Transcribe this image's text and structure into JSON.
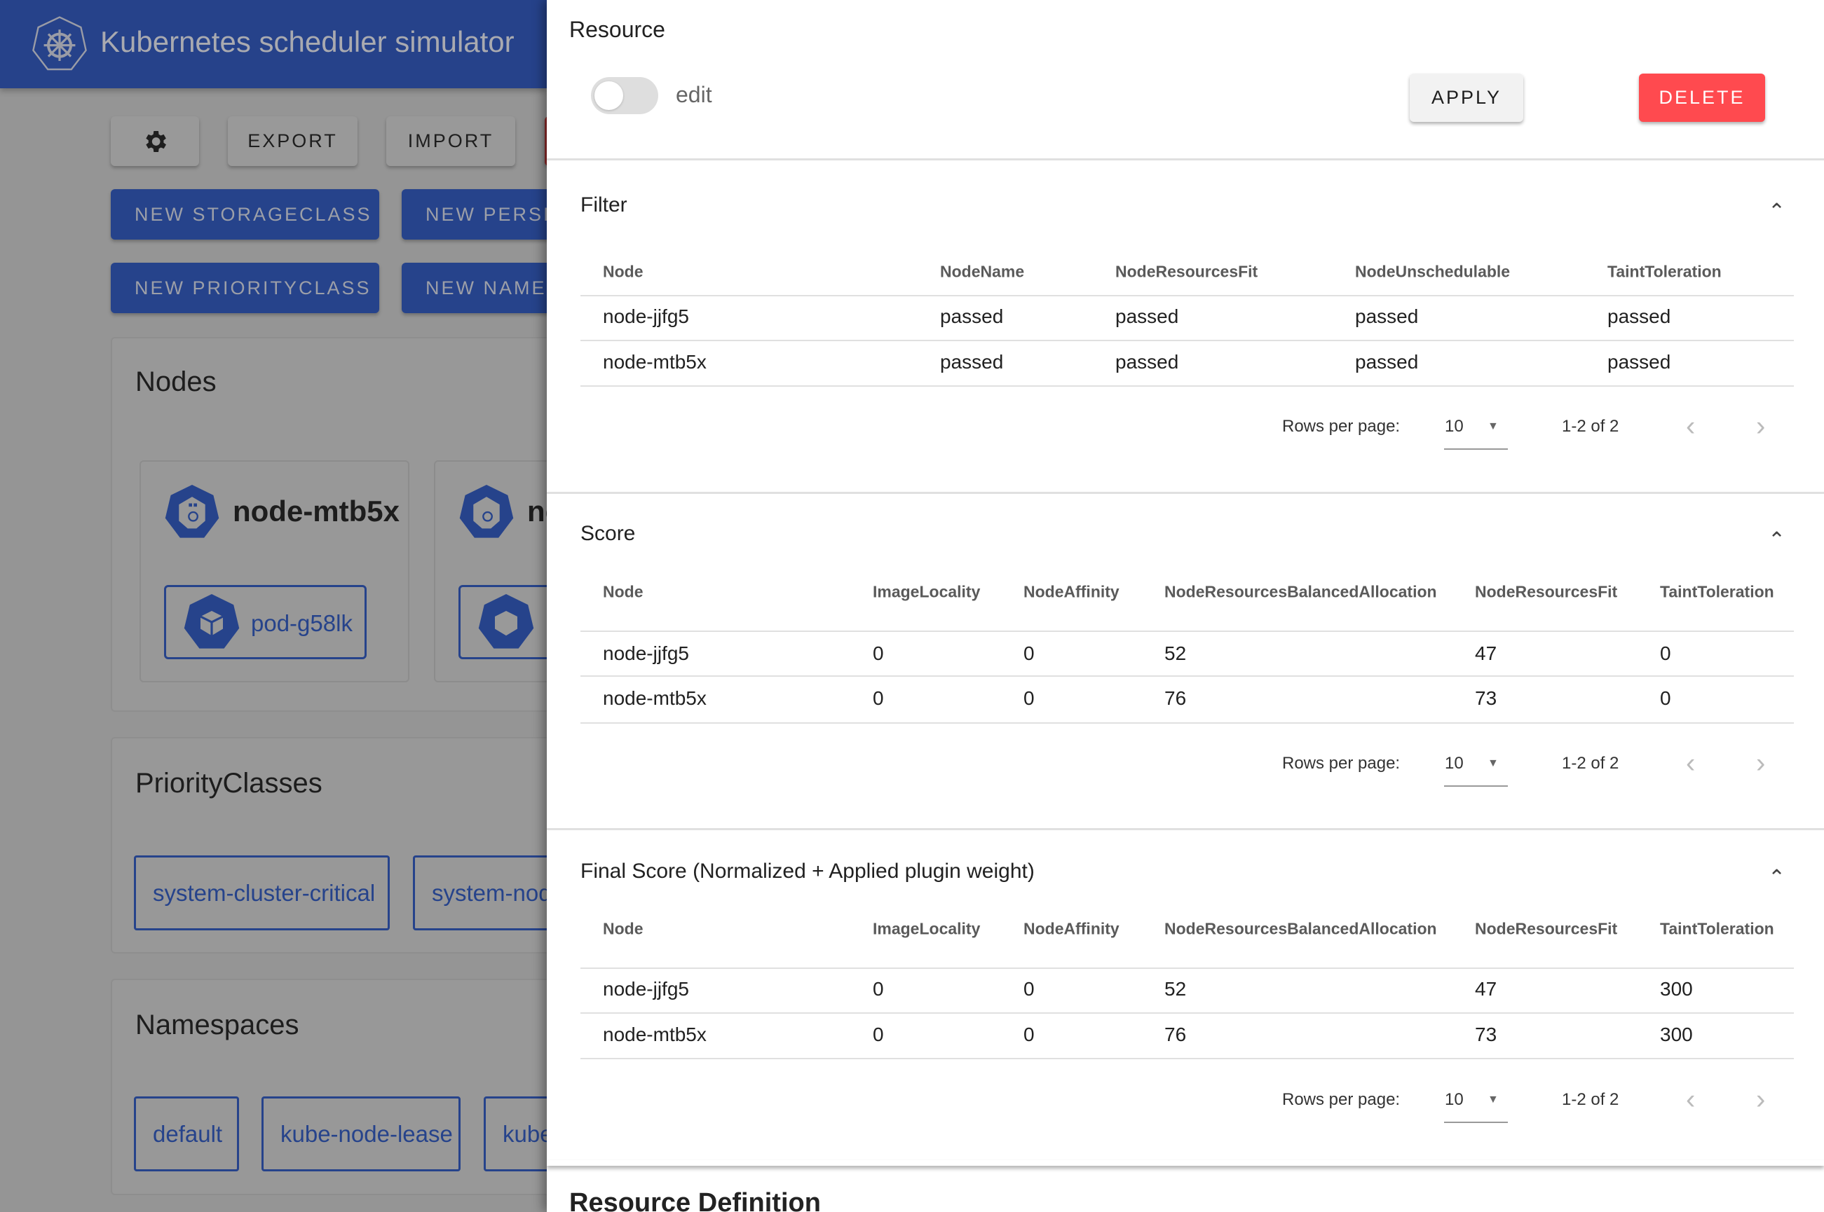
{
  "app": {
    "title": "Kubernetes scheduler simulator",
    "logo_icon": "kubernetes-helm-icon"
  },
  "toolbar": {
    "settings_icon": "gear-icon",
    "export_label": "EXPORT",
    "import_label": "IMPORT",
    "new_buttons": [
      "NEW STORAGECLASS",
      "NEW PERSIS",
      "NEW PRIORITYCLASS",
      "NEW NAMES"
    ]
  },
  "nodes_section": {
    "title": "Nodes",
    "nodes": [
      {
        "name": "node-mtb5x",
        "pods": [
          "pod-g58lk"
        ]
      },
      {
        "name": "nc",
        "pods": [
          ""
        ]
      }
    ]
  },
  "priorityclasses_section": {
    "title": "PriorityClasses",
    "items": [
      "system-cluster-critical",
      "system-nod"
    ]
  },
  "namespaces_section": {
    "title": "Namespaces",
    "items": [
      "default",
      "kube-node-lease",
      "kube"
    ]
  },
  "panel": {
    "title": "Resource",
    "edit_label": "edit",
    "edit_toggle_on": false,
    "apply_label": "APPLY",
    "delete_label": "DELETE",
    "delete_color": "#ff4a4f",
    "resource_definition_title": "Resource Definition",
    "sections": [
      {
        "title": "Filter",
        "columns": [
          "Node",
          "NodeName",
          "NodeResourcesFit",
          "NodeUnschedulable",
          "TaintToleration"
        ],
        "rows": [
          [
            "node-jjfg5",
            "passed",
            "passed",
            "passed",
            "passed"
          ],
          [
            "node-mtb5x",
            "passed",
            "passed",
            "passed",
            "passed"
          ]
        ],
        "rows_per_page_label": "Rows per page:",
        "rows_per_page": "10",
        "range": "1-2 of 2"
      },
      {
        "title": "Score",
        "columns": [
          "Node",
          "ImageLocality",
          "NodeAffinity",
          "NodeResourcesBalancedAllocation",
          "NodeResourcesFit",
          "TaintToleration"
        ],
        "rows": [
          [
            "node-jjfg5",
            "0",
            "0",
            "52",
            "47",
            "0"
          ],
          [
            "node-mtb5x",
            "0",
            "0",
            "76",
            "73",
            "0"
          ]
        ],
        "rows_per_page_label": "Rows per page:",
        "rows_per_page": "10",
        "range": "1-2 of 2"
      },
      {
        "title": "Final Score (Normalized + Applied plugin weight)",
        "columns": [
          "Node",
          "ImageLocality",
          "NodeAffinity",
          "NodeResourcesBalancedAllocation",
          "NodeResourcesFit",
          "TaintToleration"
        ],
        "rows": [
          [
            "node-jjfg5",
            "0",
            "0",
            "52",
            "47",
            "300"
          ],
          [
            "node-mtb5x",
            "0",
            "0",
            "76",
            "73",
            "300"
          ]
        ],
        "rows_per_page_label": "Rows per page:",
        "rows_per_page": "10",
        "range": "1-2 of 2"
      }
    ]
  }
}
